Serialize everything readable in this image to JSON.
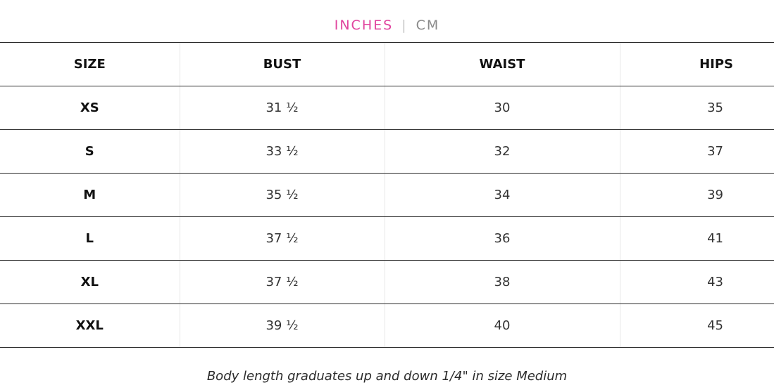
{
  "units": {
    "active": "INCHES",
    "separator": "|",
    "inactive": "CM"
  },
  "table": {
    "headers": [
      "SIZE",
      "BUST",
      "WAIST",
      "HIPS"
    ],
    "rows": [
      {
        "size": "XS",
        "bust": "31 ½",
        "waist": "30",
        "hips": "35"
      },
      {
        "size": "S",
        "bust": "33 ½",
        "waist": "32",
        "hips": "37"
      },
      {
        "size": "M",
        "bust": "35 ½",
        "waist": "34",
        "hips": "39"
      },
      {
        "size": "L",
        "bust": "37 ½",
        "waist": "36",
        "hips": "41"
      },
      {
        "size": "XL",
        "bust": "37 ½",
        "waist": "38",
        "hips": "43"
      },
      {
        "size": "XXL",
        "bust": "39 ½",
        "waist": "40",
        "hips": "45"
      }
    ]
  },
  "footnote": "Body length graduates up and down 1/4\" in size Medium",
  "colors": {
    "active_unit": "#e0449e",
    "inactive_unit": "#8a8a8a",
    "rule": "#2b2b2b"
  }
}
